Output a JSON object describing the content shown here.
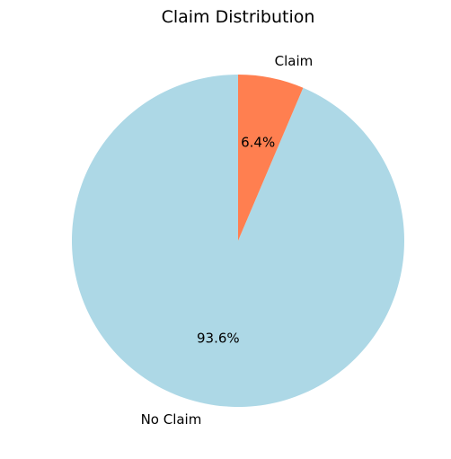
{
  "chart_data": {
    "type": "pie",
    "title": "Claim Distribution",
    "slices": [
      {
        "label": "No Claim",
        "value": 93.6,
        "pct_label": "93.6%",
        "color": "#add8e6"
      },
      {
        "label": "Claim",
        "value": 6.4,
        "pct_label": "6.4%",
        "color": "#ff7f50"
      }
    ],
    "start_angle_deg": 90,
    "direction": "counterclockwise"
  }
}
